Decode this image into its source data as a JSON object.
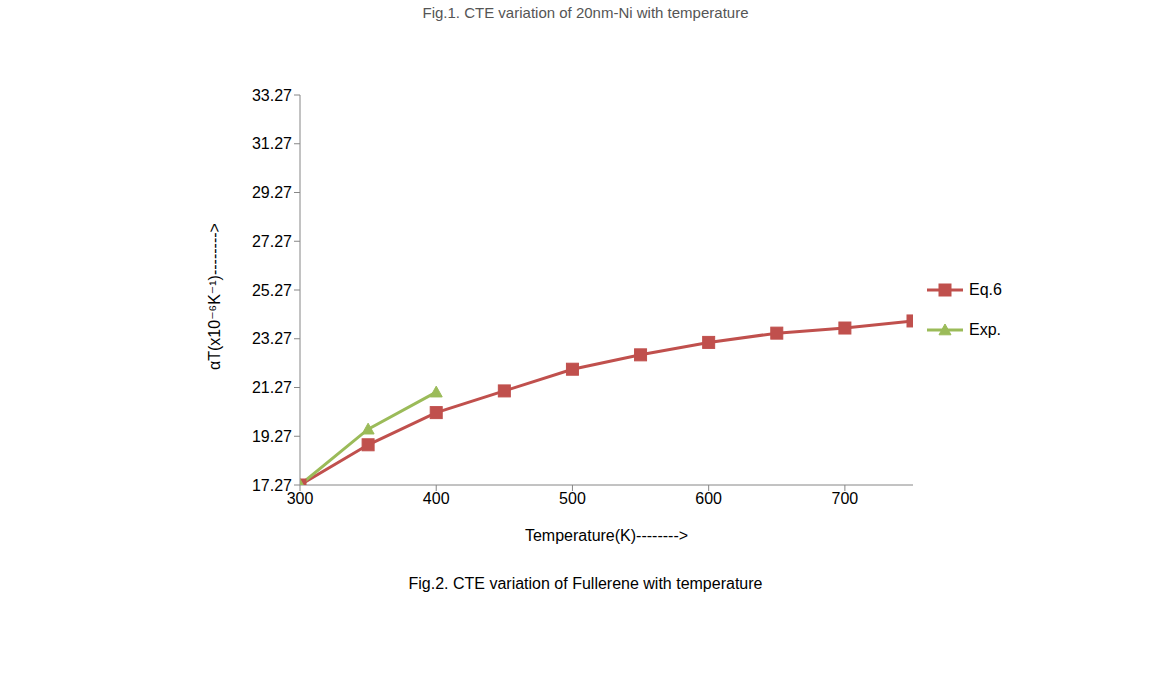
{
  "chart_data": {
    "type": "line",
    "title": "Fig.2. CTE variation of Fullerene with temperature",
    "annotations": [
      "Fig.1. CTE variation of 20nm-Ni with temperature"
    ],
    "x_label": "Temperature(K)-------->",
    "y_label": "αT(x10⁻⁶K⁻¹)-------->",
    "xlim": [
      300,
      750
    ],
    "xticks": [
      300,
      400,
      500,
      600,
      700
    ],
    "ylim": [
      17.27,
      33.27
    ],
    "yticks": [
      17.27,
      19.27,
      21.27,
      23.27,
      25.27,
      27.27,
      29.27,
      31.27,
      33.27
    ],
    "grid": false,
    "legend": "right",
    "series": [
      {
        "name": "Eq.6",
        "color": "#c0504d",
        "marker": "square",
        "line_style": "solid",
        "x": [
          300,
          350,
          400,
          450,
          500,
          550,
          600,
          650,
          700,
          750
        ],
        "values": [
          17.27,
          18.92,
          20.24,
          21.13,
          22.02,
          22.61,
          23.12,
          23.5,
          23.71,
          24.0
        ]
      },
      {
        "name": "Exp.",
        "color": "#9bbb59",
        "marker": "triangle",
        "line_style": "solid",
        "x": [
          300,
          350,
          400
        ],
        "values": [
          17.27,
          19.56,
          21.08
        ]
      }
    ]
  }
}
